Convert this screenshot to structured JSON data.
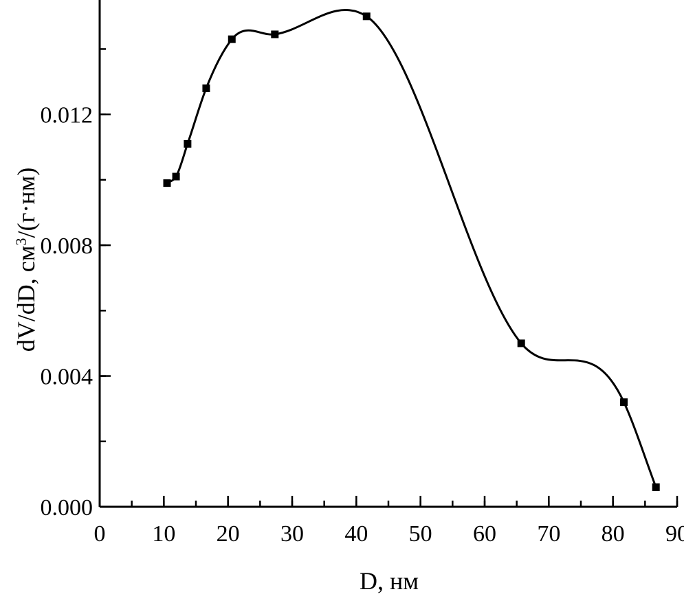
{
  "chart_data": {
    "type": "line",
    "title": "",
    "xlabel": "D, нм",
    "ylabel_parts": {
      "before": "dV/dD, см",
      "superscript": "3",
      "after": "/(г·нм)"
    },
    "xlim": [
      0,
      90
    ],
    "ylim": [
      0.0,
      0.0155
    ],
    "x_ticks": [
      0,
      10,
      20,
      30,
      40,
      50,
      60,
      70,
      80,
      90
    ],
    "x_tick_labels": [
      "0",
      "10",
      "20",
      "30",
      "40",
      "50",
      "60",
      "70",
      "80",
      "90"
    ],
    "x_minor_step": 5,
    "y_ticks": [
      0.0,
      0.004,
      0.008,
      0.012
    ],
    "y_tick_labels": [
      "0.000",
      "0.004",
      "0.008",
      "0.012"
    ],
    "y_minor_step": 0.002,
    "grid": false,
    "marker": "square",
    "smooth": true,
    "series": [
      {
        "x": [
          10.5,
          11.9,
          13.7,
          16.6,
          20.6,
          27.3,
          41.6,
          65.7,
          81.7,
          86.7
        ],
        "y": [
          0.0099,
          0.0101,
          0.0111,
          0.0128,
          0.0143,
          0.01445,
          0.015,
          0.005,
          0.0032,
          0.0006
        ]
      }
    ]
  }
}
